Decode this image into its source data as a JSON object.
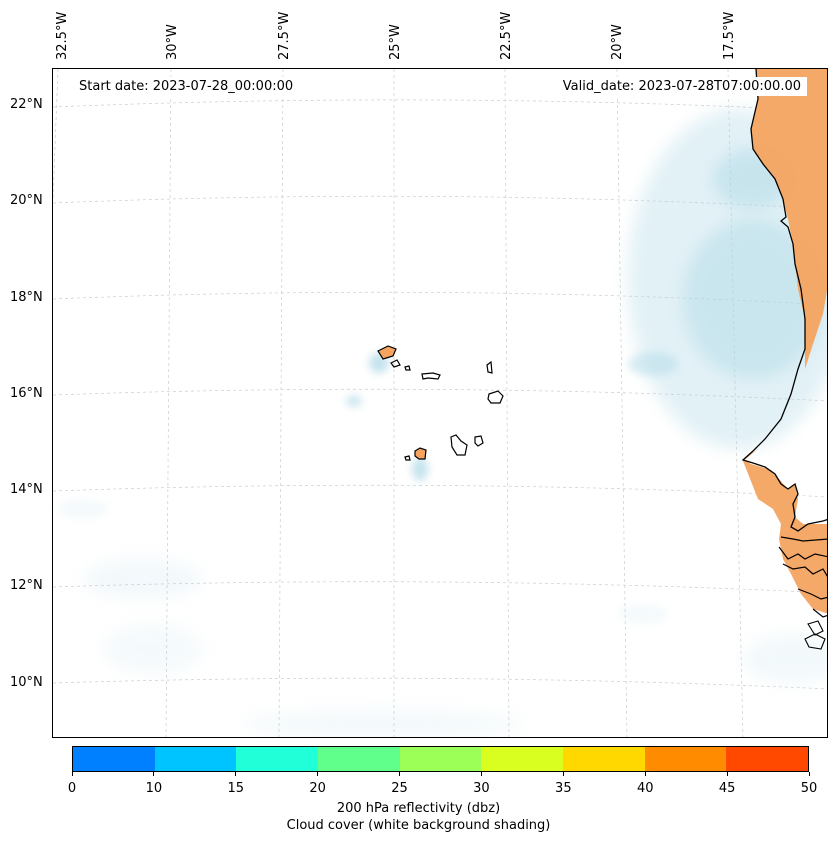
{
  "map": {
    "start_label": "Start date: 2023-07-28_00:00:00",
    "valid_label": "Valid_date: 2023-07-28T07:00:00.00",
    "lon_ticks": [
      "32.5°W",
      "30°W",
      "27.5°W",
      "25°W",
      "22.5°W",
      "20°W",
      "17.5°W"
    ],
    "lat_ticks": [
      "22°N",
      "20°N",
      "18°N",
      "16°N",
      "14°N",
      "12°N",
      "10°N"
    ],
    "land_fill_color": "#f4a460",
    "cloud_color": "#add8e6"
  },
  "colorbar": {
    "colors": [
      "#0080ff",
      "#00c4ff",
      "#20ffd8",
      "#60ff8c",
      "#9cff58",
      "#d8ff20",
      "#ffd800",
      "#ff8c00",
      "#ff4800"
    ],
    "ticks": [
      "0",
      "10",
      "15",
      "20",
      "25",
      "30",
      "35",
      "40",
      "45",
      "50"
    ],
    "label_main": "200 hPa reflectivity (dbz)",
    "label_sub": "Cloud cover (white background shading)"
  }
}
